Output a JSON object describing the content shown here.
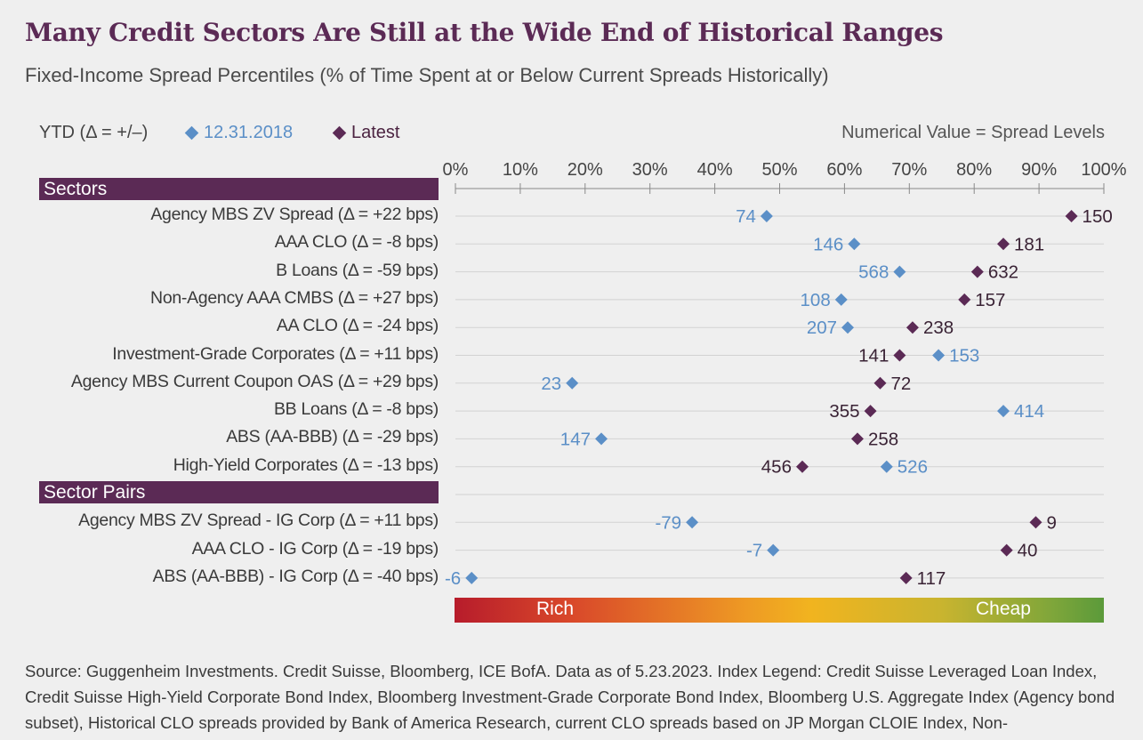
{
  "header": {
    "title": "Many Credit Sectors Are Still at the Wide End of Historical Ranges",
    "subtitle": "Fixed-Income Spread Percentiles (% of Time Spent at or Below Current Spreads Historically)"
  },
  "legend": {
    "ytd_label": "YTD (Δ = +/–)",
    "prior_label": "12.31.2018",
    "latest_label": "Latest",
    "note": "Numerical Value = Spread Levels"
  },
  "sections": {
    "sectors": "Sectors",
    "pairs": "Sector Pairs"
  },
  "scale": {
    "rich_label": "Rich",
    "cheap_label": "Cheap"
  },
  "footnote": "Source: Guggenheim Investments. Credit Suisse, Bloomberg, ICE BofA. Data as of 5.23.2023. Index Legend: Credit Suisse Leveraged Loan Index, Credit Suisse High-Yield Corporate Bond Index, Bloomberg Investment-Grade Corporate Bond Index, Bloomberg U.S. Aggregate Index (Agency bond subset), Historical CLO spreads provided by Bank of America Research, current CLO spreads based on JP Morgan CLOIE Index, Non-",
  "colors": {
    "prior": "#5b8fc7",
    "latest": "#5b2a55",
    "accent": "#5b2a55"
  },
  "chart_data": {
    "type": "scatter",
    "x_axis": {
      "ticks": [
        "0%",
        "10%",
        "20%",
        "30%",
        "40%",
        "50%",
        "60%",
        "70%",
        "80%",
        "90%",
        "100%"
      ],
      "range": [
        0,
        100
      ]
    },
    "series": [
      {
        "name": "12.31.2018",
        "marker": "diamond"
      },
      {
        "name": "Latest",
        "marker": "diamond"
      }
    ],
    "groups": [
      {
        "group": "Sectors",
        "rows": [
          {
            "label": "Agency MBS ZV Spread (Δ = +22 bps)",
            "prior": {
              "pct": 48,
              "spread": "74"
            },
            "latest": {
              "pct": 95,
              "spread": "150"
            }
          },
          {
            "label": "AAA CLO (Δ = -8 bps)",
            "prior": {
              "pct": 61.5,
              "spread": "146"
            },
            "latest": {
              "pct": 84.5,
              "spread": "181"
            }
          },
          {
            "label": "B Loans (Δ = -59 bps)",
            "prior": {
              "pct": 68.5,
              "spread": "568"
            },
            "latest": {
              "pct": 80.5,
              "spread": "632"
            }
          },
          {
            "label": "Non-Agency AAA CMBS (Δ = +27 bps)",
            "prior": {
              "pct": 59.5,
              "spread": "108"
            },
            "latest": {
              "pct": 78.5,
              "spread": "157"
            }
          },
          {
            "label": "AA CLO (Δ = -24 bps)",
            "prior": {
              "pct": 60.5,
              "spread": "207"
            },
            "latest": {
              "pct": 70.5,
              "spread": "238"
            }
          },
          {
            "label": "Investment-Grade Corporates (Δ = +11 bps)",
            "prior": {
              "pct": 74.5,
              "spread": "153"
            },
            "latest": {
              "pct": 68.5,
              "spread": "141"
            }
          },
          {
            "label": "Agency MBS Current Coupon OAS (Δ = +29 bps)",
            "prior": {
              "pct": 18,
              "spread": "23"
            },
            "latest": {
              "pct": 65.5,
              "spread": "72"
            }
          },
          {
            "label": "BB Loans (Δ = -8 bps)",
            "prior": {
              "pct": 84.5,
              "spread": "414"
            },
            "latest": {
              "pct": 64,
              "spread": "355"
            }
          },
          {
            "label": "ABS (AA-BBB) (Δ = -29 bps)",
            "prior": {
              "pct": 22.5,
              "spread": "147"
            },
            "latest": {
              "pct": 62,
              "spread": "258"
            }
          },
          {
            "label": "High-Yield Corporates (Δ = -13 bps)",
            "prior": {
              "pct": 66.5,
              "spread": "526"
            },
            "latest": {
              "pct": 53.5,
              "spread": "456"
            }
          }
        ]
      },
      {
        "group": "Sector Pairs",
        "rows": [
          {
            "label": "Agency MBS ZV Spread - IG Corp (Δ = +11 bps)",
            "prior": {
              "pct": 36.5,
              "spread": "-79"
            },
            "latest": {
              "pct": 89.5,
              "spread": "9"
            }
          },
          {
            "label": "AAA CLO - IG Corp (Δ = -19 bps)",
            "prior": {
              "pct": 49,
              "spread": "-7"
            },
            "latest": {
              "pct": 85,
              "spread": "40"
            }
          },
          {
            "label": "ABS (AA-BBB) - IG Corp (Δ = -40 bps)",
            "prior": {
              "pct": 2.5,
              "spread": "-6"
            },
            "latest": {
              "pct": 69.5,
              "spread": "117"
            }
          }
        ]
      }
    ]
  }
}
